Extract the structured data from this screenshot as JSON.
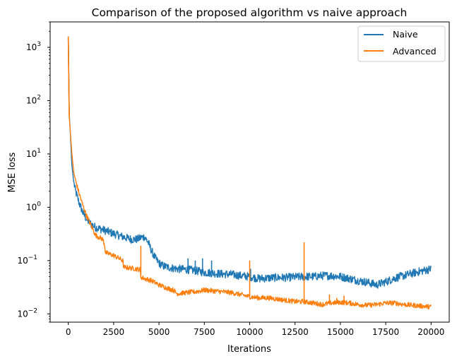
{
  "chart_data": {
    "type": "line",
    "title": "Comparison of the proposed algorithm vs naive approach",
    "xlabel": "Iterations",
    "ylabel": "MSE loss",
    "xscale": "linear",
    "yscale": "log",
    "xlim": [
      -1000,
      21000
    ],
    "ylim": [
      0.007,
      3000
    ],
    "xticks": [
      0,
      2500,
      5000,
      7500,
      10000,
      12500,
      15000,
      17500,
      20000
    ],
    "xtick_labels": [
      "0",
      "2500",
      "5000",
      "7500",
      "10000",
      "12500",
      "15000",
      "17500",
      "20000"
    ],
    "yticks": [
      0.01,
      0.1,
      1,
      10,
      100,
      1000
    ],
    "ytick_labels": [
      [
        "10",
        "−2"
      ],
      [
        "10",
        "−1"
      ],
      [
        "10",
        "0"
      ],
      [
        "10",
        "1"
      ],
      [
        "10",
        "2"
      ],
      [
        "10",
        "3"
      ]
    ],
    "grid": false,
    "legend": "top-right",
    "series": [
      {
        "name": "Naive",
        "color": "#1f77b4",
        "x": [
          0,
          50,
          100,
          200,
          300,
          400,
          600,
          800,
          1000,
          1200,
          1500,
          2000,
          2500,
          3000,
          3500,
          3800,
          4000,
          4200,
          4400,
          4600,
          4800,
          5000,
          5200,
          5500,
          6000,
          6500,
          7000,
          7500,
          8000,
          8500,
          9000,
          9500,
          10000,
          10500,
          11000,
          11500,
          12000,
          12500,
          13000,
          13500,
          14000,
          14500,
          15000,
          15500,
          16000,
          16500,
          17000,
          17500,
          18000,
          18500,
          19000,
          19500,
          20000
        ],
        "y": [
          1600,
          60,
          30,
          6,
          3,
          2,
          1.2,
          0.8,
          0.6,
          0.5,
          0.42,
          0.37,
          0.32,
          0.28,
          0.25,
          0.25,
          0.27,
          0.28,
          0.22,
          0.15,
          0.11,
          0.09,
          0.08,
          0.075,
          0.07,
          0.068,
          0.065,
          0.06,
          0.058,
          0.056,
          0.055,
          0.052,
          0.05,
          0.046,
          0.047,
          0.048,
          0.048,
          0.049,
          0.05,
          0.05,
          0.052,
          0.052,
          0.05,
          0.046,
          0.042,
          0.039,
          0.035,
          0.04,
          0.047,
          0.052,
          0.058,
          0.064,
          0.07
        ],
        "noise": 0.22,
        "spikes": [
          [
            6600,
            0.11
          ],
          [
            7000,
            0.1
          ],
          [
            7400,
            0.11
          ],
          [
            7900,
            0.1
          ],
          [
            10050,
            0.07
          ]
        ]
      },
      {
        "name": "Advanced",
        "color": "#ff7f0e",
        "x": [
          0,
          50,
          100,
          200,
          300,
          400,
          600,
          800,
          1000,
          1100,
          1200,
          1500,
          1900,
          2000,
          2050,
          2500,
          2800,
          3000,
          3050,
          3500,
          3950,
          4000,
          4050,
          4200,
          4600,
          5000,
          5500,
          5800,
          6000,
          6500,
          7000,
          7500,
          8000,
          8500,
          9000,
          9500,
          10000,
          10500,
          11000,
          11500,
          12000,
          12500,
          13000,
          13500,
          14000,
          14500,
          15000,
          15500,
          16000,
          16500,
          17000,
          17500,
          18000,
          18500,
          19000,
          19500,
          20000
        ],
        "y": [
          1600,
          50,
          30,
          10,
          4.5,
          3.2,
          1.8,
          1.1,
          0.7,
          0.6,
          0.5,
          0.3,
          0.25,
          0.2,
          0.14,
          0.125,
          0.11,
          0.1,
          0.075,
          0.072,
          0.068,
          0.05,
          0.048,
          0.046,
          0.042,
          0.035,
          0.03,
          0.028,
          0.024,
          0.025,
          0.026,
          0.028,
          0.027,
          0.026,
          0.025,
          0.023,
          0.021,
          0.02,
          0.02,
          0.019,
          0.018,
          0.017,
          0.017,
          0.016,
          0.015,
          0.016,
          0.0165,
          0.016,
          0.015,
          0.0145,
          0.015,
          0.016,
          0.016,
          0.015,
          0.0145,
          0.014,
          0.0135
        ],
        "noise": 0.13,
        "spikes": [
          [
            4000,
            0.19
          ],
          [
            10000,
            0.1
          ],
          [
            13000,
            0.22
          ],
          [
            14400,
            0.023
          ],
          [
            14800,
            0.02
          ],
          [
            15200,
            0.022
          ]
        ]
      }
    ]
  }
}
